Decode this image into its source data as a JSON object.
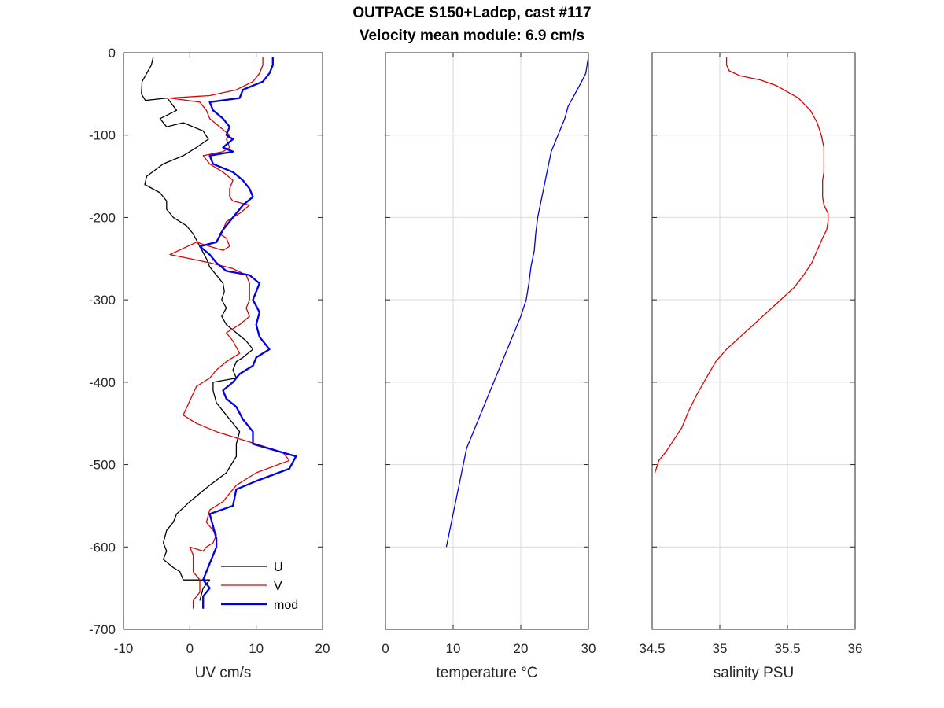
{
  "chart_data": [
    {
      "type": "line",
      "title": "OUTPACE S150+Ladcp, cast #117",
      "subtitle": "Velocity mean module:  6.9 cm/s",
      "xlabel": "UV cm/s",
      "ylabel": "",
      "xlim": [
        -10,
        20
      ],
      "ylim": [
        -700,
        0
      ],
      "xticks": [
        "-10",
        "0",
        "10",
        "20"
      ],
      "yticks": [
        "0",
        "-100",
        "-200",
        "-300",
        "-400",
        "-500",
        "-600",
        "-700"
      ],
      "grid": false,
      "legend": "bottom-right",
      "series": [
        {
          "name": "U",
          "color": "#000000",
          "x": [
            -5.5,
            -5.8,
            -6.5,
            -7.2,
            -7.3,
            -6.7,
            -3.4,
            -2.0,
            -4.5,
            -3.5,
            -1.0,
            2.0,
            2.8,
            1.0,
            -1.0,
            -4.0,
            -6.5,
            -6.8,
            -4.5,
            -3.5,
            -3.5,
            -2.5,
            -0.5,
            0.5,
            1.5,
            2.5,
            3.0,
            4.0,
            5.0,
            5.2,
            4.8,
            5.5,
            4.8,
            5.5,
            7.0,
            8.5,
            9.5,
            8.0,
            7.0,
            6.5,
            7.0,
            3.5,
            3.5,
            4.0,
            5.5,
            7.5,
            7.0,
            7.0,
            5.5,
            3.0,
            0.0,
            -2.0,
            -2.5,
            -3.5,
            -4.0,
            -3.5,
            -4.0,
            -2.5,
            -1.5,
            -1.0,
            3.0,
            2.0,
            1.5
          ],
          "y": [
            -5,
            -15,
            -25,
            -35,
            -50,
            -58,
            -55,
            -70,
            -80,
            -90,
            -85,
            -95,
            -105,
            -115,
            -125,
            -135,
            -150,
            -160,
            -170,
            -180,
            -190,
            -200,
            -210,
            -220,
            -235,
            -250,
            -260,
            -270,
            -280,
            -290,
            -300,
            -310,
            -320,
            -330,
            -340,
            -350,
            -360,
            -370,
            -375,
            -385,
            -395,
            -400,
            -410,
            -425,
            -440,
            -460,
            -475,
            -490,
            -510,
            -525,
            -545,
            -560,
            -570,
            -580,
            -595,
            -605,
            -615,
            -625,
            -630,
            -640,
            -640,
            -650,
            -665
          ]
        },
        {
          "name": "V",
          "color": "#e00000",
          "x": [
            11.0,
            11.0,
            10.5,
            9.5,
            7.0,
            3.0,
            -3.0,
            1.5,
            2.5,
            3.0,
            4.5,
            6.0,
            5.5,
            6.0,
            5.0,
            2.0,
            3.0,
            5.0,
            6.5,
            6.0,
            6.0,
            6.5,
            9.0,
            7.5,
            5.5,
            5.0,
            4.5,
            5.5,
            6.0,
            5.0,
            3.0,
            1.0,
            -3.0,
            0.0,
            3.0,
            6.5,
            8.5,
            9.0,
            9.0,
            9.0,
            8.5,
            9.0,
            7.5,
            5.5,
            6.5,
            7.5,
            5.5,
            4.0,
            3.0,
            1.0,
            -1.0,
            1.0,
            4.0,
            8.0,
            14.0,
            15.0,
            10.0,
            7.0,
            5.0,
            3.0,
            2.5,
            4.0,
            3.5,
            2.5,
            2.0,
            0.0,
            0.5,
            0.5,
            0.5,
            1.5,
            1.5,
            1.5,
            1.5,
            0.5,
            0.5
          ],
          "y": [
            -5,
            -15,
            -25,
            -35,
            -45,
            -52,
            -55,
            -60,
            -70,
            -80,
            -90,
            -100,
            -105,
            -115,
            -120,
            -125,
            -135,
            -145,
            -155,
            -165,
            -175,
            -180,
            -185,
            -195,
            -205,
            -215,
            -220,
            -225,
            -235,
            -240,
            -235,
            -230,
            -245,
            -250,
            -255,
            -262,
            -270,
            -280,
            -290,
            -300,
            -310,
            -320,
            -330,
            -340,
            -350,
            -365,
            -375,
            -385,
            -395,
            -405,
            -440,
            -450,
            -460,
            -470,
            -485,
            -495,
            -510,
            -525,
            -545,
            -555,
            -570,
            -585,
            -595,
            -600,
            -605,
            -600,
            -610,
            -620,
            -630,
            -640,
            -645,
            -650,
            -655,
            -665,
            -675
          ]
        },
        {
          "name": "mod",
          "color": "#0000e6",
          "x": [
            12.5,
            12.5,
            12.0,
            11.0,
            8.0,
            7.5,
            3.0,
            3.5,
            5.0,
            6.0,
            5.5,
            6.5,
            5.0,
            6.5,
            3.0,
            3.5,
            6.5,
            8.0,
            9.0,
            9.5,
            8.0,
            7.5,
            6.5,
            5.0,
            4.0,
            1.5,
            3.0,
            4.0,
            5.5,
            9.0,
            10.5,
            10.0,
            9.5,
            10.5,
            10.0,
            10.5,
            12.0,
            10.0,
            9.5,
            7.5,
            6.5,
            5.0,
            5.5,
            7.0,
            8.0,
            9.5,
            9.5,
            16.0,
            15.0,
            10.0,
            7.0,
            6.5,
            3.0,
            3.5,
            4.0,
            4.0,
            3.5,
            3.0,
            2.5,
            2.0,
            2.5,
            3.0,
            2.0,
            2.0,
            2.0
          ],
          "y": [
            -5,
            -15,
            -25,
            -35,
            -45,
            -55,
            -60,
            -70,
            -80,
            -90,
            -100,
            -105,
            -115,
            -120,
            -125,
            -135,
            -145,
            -155,
            -165,
            -175,
            -185,
            -190,
            -200,
            -215,
            -230,
            -235,
            -245,
            -255,
            -265,
            -270,
            -280,
            -290,
            -300,
            -315,
            -330,
            -345,
            -360,
            -370,
            -380,
            -390,
            -400,
            -410,
            -420,
            -430,
            -445,
            -460,
            -475,
            -490,
            -505,
            -520,
            -530,
            -550,
            -560,
            -575,
            -590,
            -600,
            -610,
            -620,
            -630,
            -640,
            -645,
            -650,
            -660,
            -670,
            -675
          ]
        }
      ]
    },
    {
      "type": "line",
      "xlabel": "temperature °C",
      "xlim": [
        0,
        30
      ],
      "ylim": [
        -700,
        0
      ],
      "xticks": [
        "0",
        "10",
        "20",
        "30"
      ],
      "grid": true,
      "series": [
        {
          "color": "#0000e6",
          "x": [
            30.0,
            29.8,
            29.6,
            29.0,
            28.0,
            27.0,
            26.5,
            25.5,
            24.5,
            24.0,
            23.5,
            23.0,
            22.5,
            22.2,
            22.0,
            21.5,
            21.2,
            20.8,
            20.0,
            19.0,
            18.0,
            17.0,
            16.0,
            15.0,
            14.0,
            13.0,
            12.0,
            11.5,
            11.0,
            10.5,
            10.0,
            9.5,
            9.0
          ],
          "y": [
            -5,
            -15,
            -25,
            -35,
            -50,
            -65,
            -80,
            -100,
            -120,
            -140,
            -160,
            -180,
            -200,
            -220,
            -240,
            -260,
            -280,
            -300,
            -320,
            -340,
            -360,
            -380,
            -400,
            -420,
            -440,
            -460,
            -480,
            -500,
            -520,
            -540,
            -560,
            -580,
            -600
          ]
        }
      ]
    },
    {
      "type": "line",
      "xlabel": "salinity PSU",
      "xlim": [
        34.5,
        36
      ],
      "ylim": [
        -700,
        0
      ],
      "xticks": [
        "34.5",
        "35",
        "35.5",
        "36"
      ],
      "grid": true,
      "series": [
        {
          "color": "#e00000",
          "x": [
            35.05,
            35.05,
            35.07,
            35.15,
            35.3,
            35.42,
            35.58,
            35.67,
            35.72,
            35.75,
            35.77,
            35.77,
            35.77,
            35.76,
            35.76,
            35.76,
            35.77,
            35.8,
            35.8,
            35.79,
            35.76,
            35.72,
            35.68,
            35.62,
            35.55,
            35.45,
            35.35,
            35.25,
            35.15,
            35.05,
            34.97,
            34.9,
            34.83,
            34.77,
            34.72,
            34.66,
            34.6,
            34.55,
            34.53,
            34.52
          ],
          "y": [
            -5,
            -15,
            -22,
            -28,
            -33,
            -40,
            -55,
            -70,
            -85,
            -100,
            -115,
            -130,
            -145,
            -155,
            -165,
            -175,
            -185,
            -195,
            -205,
            -215,
            -225,
            -240,
            -255,
            -270,
            -285,
            -300,
            -315,
            -330,
            -345,
            -360,
            -375,
            -395,
            -415,
            -435,
            -455,
            -470,
            -485,
            -495,
            -505,
            -510
          ]
        }
      ]
    }
  ]
}
